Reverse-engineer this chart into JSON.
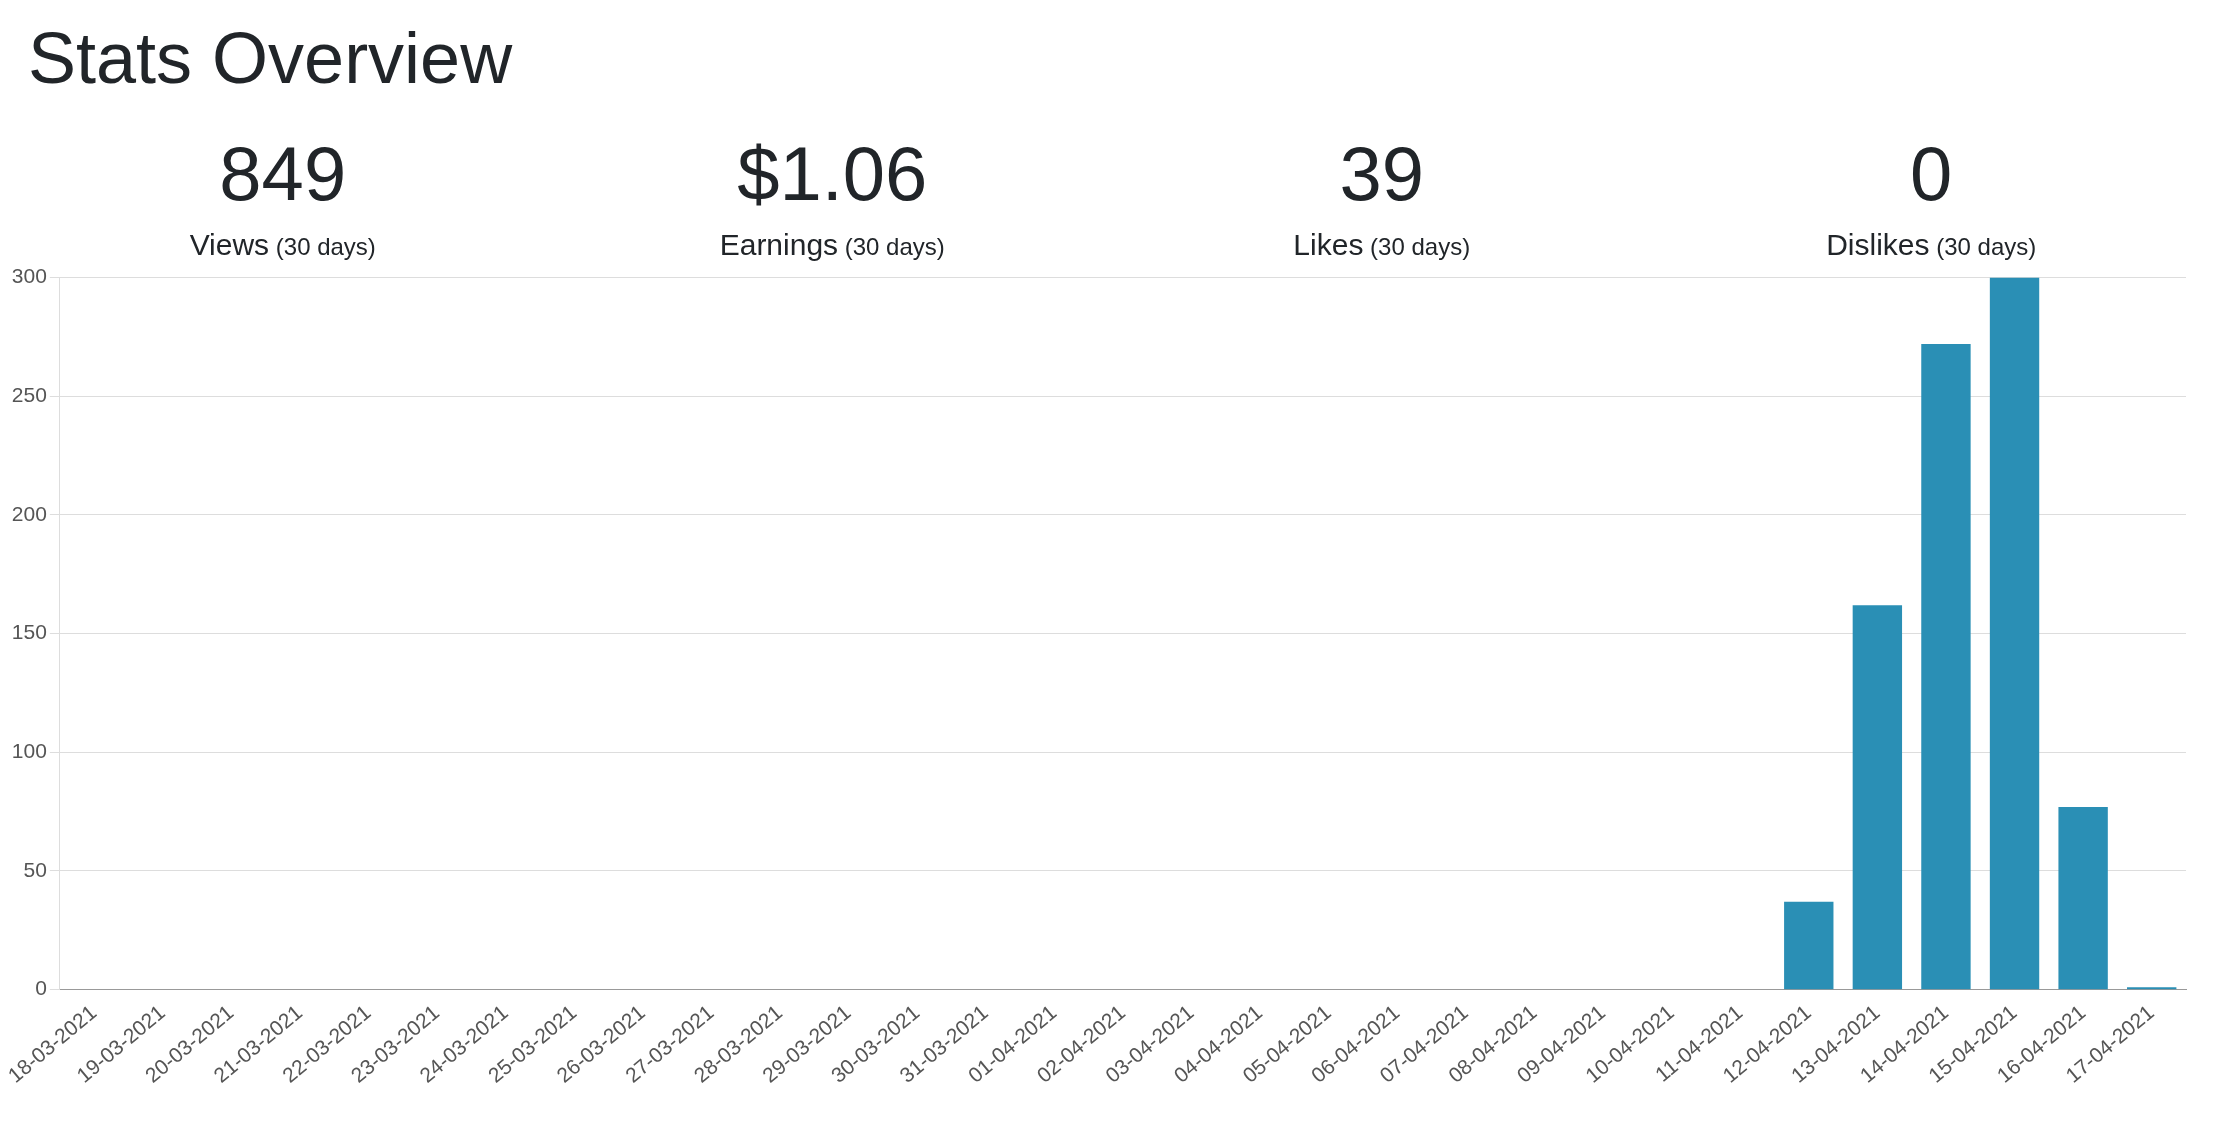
{
  "chart_data": [
    {
      "type": "other",
      "title": "Stats Overview",
      "annotations": [
        "849",
        "Views (30 days)",
        "$1.06",
        "Earnings (30 days)",
        "39",
        "Likes (30 days)",
        "0",
        "Dislikes (30 days)"
      ]
    },
    {
      "type": "bar",
      "categories": [
        "18-03-2021",
        "19-03-2021",
        "20-03-2021",
        "21-03-2021",
        "22-03-2021",
        "23-03-2021",
        "24-03-2021",
        "25-03-2021",
        "26-03-2021",
        "27-03-2021",
        "28-03-2021",
        "29-03-2021",
        "30-03-2021",
        "31-03-2021",
        "01-04-2021",
        "02-04-2021",
        "03-04-2021",
        "04-04-2021",
        "05-04-2021",
        "06-04-2021",
        "07-04-2021",
        "08-04-2021",
        "09-04-2021",
        "10-04-2021",
        "11-04-2021",
        "12-04-2021",
        "13-04-2021",
        "14-04-2021",
        "15-04-2021",
        "16-04-2021",
        "17-04-2021"
      ],
      "values": [
        0,
        0,
        0,
        0,
        0,
        0,
        0,
        0,
        0,
        0,
        0,
        0,
        0,
        0,
        0,
        0,
        0,
        0,
        0,
        0,
        0,
        0,
        0,
        0,
        0,
        37,
        162,
        272,
        300,
        77,
        1
      ],
      "color": "#2a8fb5",
      "ylim": [
        0,
        300
      ],
      "yticks": [
        0,
        50,
        100,
        150,
        200,
        250,
        300
      ],
      "grid": "y",
      "legend": false
    }
  ]
}
